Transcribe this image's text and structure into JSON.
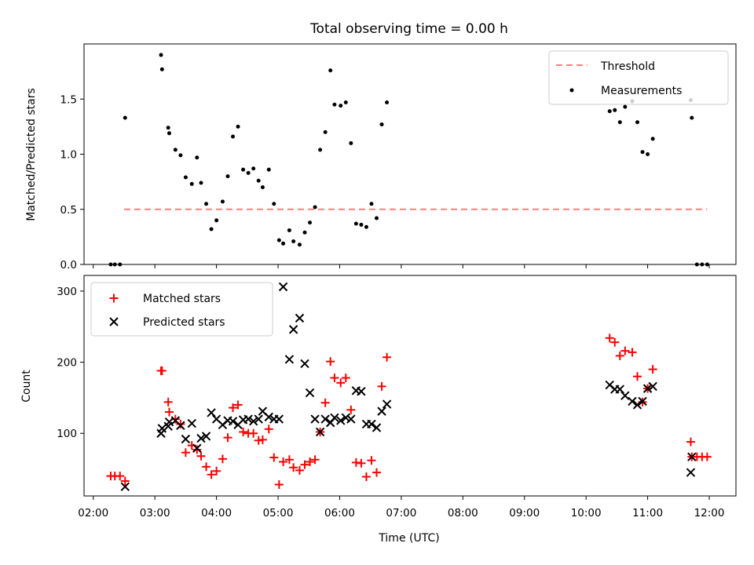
{
  "title": "Total observing time = 0.00 h",
  "chart_data": [
    {
      "type": "scatter",
      "ylabel": "Matched/Predicted stars",
      "ylim": [
        0,
        2.0
      ],
      "yticks": [
        "0.0",
        "0.5",
        "1.0",
        "1.5"
      ],
      "legend_position": "top-right",
      "threshold": {
        "name": "Threshold",
        "value": 0.5,
        "x_start": "02:30",
        "x_end": "11:58",
        "color": "#ff7f7f"
      },
      "measurements": {
        "name": "Measurements",
        "color": "#000000",
        "points": [
          [
            "02:17",
            0
          ],
          [
            "02:21",
            0
          ],
          [
            "02:26",
            0
          ],
          [
            "02:31",
            1.33
          ],
          [
            "03:06",
            1.9
          ],
          [
            "03:07",
            1.77
          ],
          [
            "03:13",
            1.24
          ],
          [
            "03:14",
            1.19
          ],
          [
            "03:20",
            1.04
          ],
          [
            "03:25",
            0.99
          ],
          [
            "03:30",
            0.79
          ],
          [
            "03:36",
            0.73
          ],
          [
            "03:41",
            0.97
          ],
          [
            "03:45",
            0.74
          ],
          [
            "03:50",
            0.55
          ],
          [
            "03:55",
            0.32
          ],
          [
            "04:00",
            0.4
          ],
          [
            "04:06",
            0.57
          ],
          [
            "04:11",
            0.8
          ],
          [
            "04:16",
            1.16
          ],
          [
            "04:21",
            1.25
          ],
          [
            "04:26",
            0.86
          ],
          [
            "04:31",
            0.83
          ],
          [
            "04:36",
            0.87
          ],
          [
            "04:41",
            0.76
          ],
          [
            "04:45",
            0.7
          ],
          [
            "04:51",
            0.86
          ],
          [
            "04:56",
            0.55
          ],
          [
            "05:01",
            0.22
          ],
          [
            "05:05",
            0.19
          ],
          [
            "05:11",
            0.31
          ],
          [
            "05:15",
            0.21
          ],
          [
            "05:21",
            0.18
          ],
          [
            "05:26",
            0.29
          ],
          [
            "05:31",
            0.38
          ],
          [
            "05:36",
            0.52
          ],
          [
            "05:41",
            1.04
          ],
          [
            "05:46",
            1.2
          ],
          [
            "05:51",
            1.76
          ],
          [
            "05:55",
            1.45
          ],
          [
            "06:01",
            1.44
          ],
          [
            "06:06",
            1.47
          ],
          [
            "06:11",
            1.1
          ],
          [
            "06:16",
            0.37
          ],
          [
            "06:21",
            0.36
          ],
          [
            "06:26",
            0.34
          ],
          [
            "06:31",
            0.55
          ],
          [
            "06:36",
            0.42
          ],
          [
            "06:41",
            1.27
          ],
          [
            "06:46",
            1.47
          ],
          [
            "10:23",
            1.39
          ],
          [
            "10:28",
            1.4
          ],
          [
            "10:33",
            1.29
          ],
          [
            "10:38",
            1.43
          ],
          [
            "10:45",
            1.48
          ],
          [
            "10:50",
            1.29
          ],
          [
            "10:55",
            1.02
          ],
          [
            "11:00",
            1.0
          ],
          [
            "11:05",
            1.14
          ],
          [
            "11:42",
            1.49
          ],
          [
            "11:43",
            1.33
          ],
          [
            "11:48",
            0
          ],
          [
            "11:53",
            0
          ],
          [
            "11:58",
            0
          ]
        ]
      }
    },
    {
      "type": "scatter",
      "xlabel": "Time (UTC)",
      "ylabel": "Count",
      "ylim": [
        12,
        322
      ],
      "yticks": [
        "100",
        "200",
        "300"
      ],
      "xticks": [
        "02:00",
        "03:00",
        "04:00",
        "05:00",
        "06:00",
        "07:00",
        "08:00",
        "09:00",
        "10:00",
        "11:00",
        "12:00"
      ],
      "xlim": [
        "01:51",
        "12:26"
      ],
      "legend_position": "top-left",
      "series": [
        {
          "name": "Matched stars",
          "marker": "plus",
          "color": "#ff0000",
          "points": [
            [
              "02:17",
              40
            ],
            [
              "02:21",
              40
            ],
            [
              "02:26",
              40
            ],
            [
              "02:31",
              33
            ],
            [
              "03:06",
              188
            ],
            [
              "03:07",
              188
            ],
            [
              "03:13",
              144
            ],
            [
              "03:14",
              130
            ],
            [
              "03:20",
              120
            ],
            [
              "03:25",
              113
            ],
            [
              "03:30",
              73
            ],
            [
              "03:36",
              83
            ],
            [
              "03:41",
              77
            ],
            [
              "03:45",
              68
            ],
            [
              "03:50",
              53
            ],
            [
              "03:55",
              42
            ],
            [
              "04:00",
              47
            ],
            [
              "04:06",
              64
            ],
            [
              "04:11",
              94
            ],
            [
              "04:16",
              136
            ],
            [
              "04:21",
              140
            ],
            [
              "04:26",
              102
            ],
            [
              "04:31",
              100
            ],
            [
              "04:36",
              100
            ],
            [
              "04:41",
              90
            ],
            [
              "04:45",
              91
            ],
            [
              "04:51",
              106
            ],
            [
              "04:56",
              66
            ],
            [
              "05:01",
              28
            ],
            [
              "05:05",
              60
            ],
            [
              "05:11",
              63
            ],
            [
              "05:15",
              52
            ],
            [
              "05:21",
              48
            ],
            [
              "05:26",
              56
            ],
            [
              "05:31",
              60
            ],
            [
              "05:36",
              63
            ],
            [
              "05:41",
              102
            ],
            [
              "05:46",
              143
            ],
            [
              "05:51",
              201
            ],
            [
              "05:55",
              178
            ],
            [
              "06:01",
              171
            ],
            [
              "06:06",
              178
            ],
            [
              "06:11",
              133
            ],
            [
              "06:16",
              59
            ],
            [
              "06:21",
              58
            ],
            [
              "06:26",
              39
            ],
            [
              "06:31",
              62
            ],
            [
              "06:36",
              45
            ],
            [
              "06:41",
              166
            ],
            [
              "06:46",
              207
            ],
            [
              "10:23",
              234
            ],
            [
              "10:28",
              228
            ],
            [
              "10:33",
              209
            ],
            [
              "10:38",
              216
            ],
            [
              "10:45",
              214
            ],
            [
              "10:50",
              180
            ],
            [
              "10:55",
              144
            ],
            [
              "11:00",
              163
            ],
            [
              "11:05",
              190
            ],
            [
              "11:42",
              88
            ],
            [
              "11:43",
              67
            ],
            [
              "11:48",
              67
            ],
            [
              "11:53",
              67
            ],
            [
              "11:58",
              67
            ]
          ]
        },
        {
          "name": "Predicted stars",
          "marker": "x",
          "color": "#000000",
          "points": [
            [
              "02:31",
              25
            ],
            [
              "03:06",
              100
            ],
            [
              "03:07",
              107
            ],
            [
              "03:13",
              110
            ],
            [
              "03:14",
              116
            ],
            [
              "03:20",
              118
            ],
            [
              "03:25",
              111
            ],
            [
              "03:30",
              92
            ],
            [
              "03:36",
              114
            ],
            [
              "03:41",
              79
            ],
            [
              "03:45",
              93
            ],
            [
              "03:50",
              96
            ],
            [
              "03:55",
              129
            ],
            [
              "04:00",
              120
            ],
            [
              "04:06",
              112
            ],
            [
              "04:11",
              118
            ],
            [
              "04:16",
              117
            ],
            [
              "04:21",
              112
            ],
            [
              "04:26",
              119
            ],
            [
              "04:31",
              120
            ],
            [
              "04:36",
              117
            ],
            [
              "04:41",
              120
            ],
            [
              "04:45",
              131
            ],
            [
              "04:51",
              123
            ],
            [
              "04:56",
              120
            ],
            [
              "05:01",
              120
            ],
            [
              "05:05",
              306
            ],
            [
              "05:11",
              204
            ],
            [
              "05:15",
              246
            ],
            [
              "05:21",
              262
            ],
            [
              "05:26",
              198
            ],
            [
              "05:31",
              157
            ],
            [
              "05:36",
              120
            ],
            [
              "05:41",
              102
            ],
            [
              "05:46",
              120
            ],
            [
              "05:51",
              115
            ],
            [
              "05:55",
              122
            ],
            [
              "06:01",
              118
            ],
            [
              "06:06",
              122
            ],
            [
              "06:11",
              120
            ],
            [
              "06:16",
              160
            ],
            [
              "06:21",
              159
            ],
            [
              "06:26",
              113
            ],
            [
              "06:31",
              113
            ],
            [
              "06:36",
              108
            ],
            [
              "06:41",
              131
            ],
            [
              "06:46",
              141
            ],
            [
              "10:23",
              168
            ],
            [
              "10:28",
              162
            ],
            [
              "10:33",
              162
            ],
            [
              "10:38",
              153
            ],
            [
              "10:45",
              145
            ],
            [
              "10:50",
              140
            ],
            [
              "10:55",
              145
            ],
            [
              "11:00",
              163
            ],
            [
              "11:05",
              166
            ],
            [
              "11:42",
              45
            ],
            [
              "11:43",
              67
            ]
          ]
        }
      ]
    }
  ]
}
